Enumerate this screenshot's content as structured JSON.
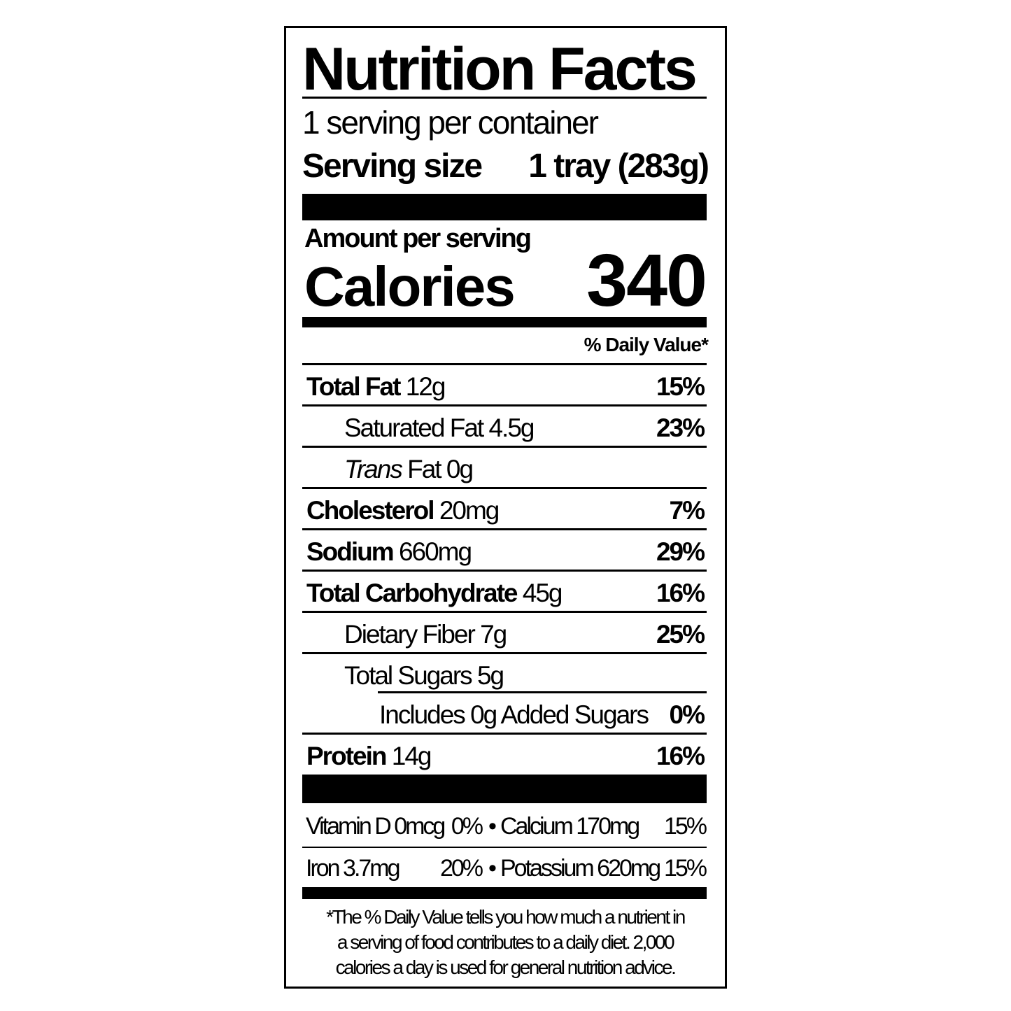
{
  "label": {
    "title": "Nutrition Facts",
    "servings_per_container": "1 serving per container",
    "serving_size_label": "Serving size",
    "serving_size_value": "1 tray (283g)",
    "amount_per_serving": "Amount per serving",
    "calories_label": "Calories",
    "calories_value": "340",
    "daily_value_header": "% Daily Value*",
    "nutrients": [
      {
        "name": "Total Fat",
        "amount": "12g",
        "dv": "15%"
      },
      {
        "name": "Saturated Fat",
        "amount": "4.5g",
        "dv": "23%"
      },
      {
        "name": "Trans",
        "name_rest": "Fat",
        "amount": "0g",
        "dv": ""
      },
      {
        "name": "Cholesterol",
        "amount": "20mg",
        "dv": "7%"
      },
      {
        "name": "Sodium",
        "amount": "660mg",
        "dv": "29%"
      },
      {
        "name": "Total Carbohydrate",
        "amount": "45g",
        "dv": "16%"
      },
      {
        "name": "Dietary Fiber",
        "amount": "7g",
        "dv": "25%"
      },
      {
        "name": "Total Sugars",
        "amount": "5g",
        "dv": ""
      },
      {
        "name": "Includes 0g Added Sugars",
        "amount": "",
        "dv": "0%"
      },
      {
        "name": "Protein",
        "amount": "14g",
        "dv": "16%"
      }
    ],
    "vitamins": [
      {
        "left": "Vitamin D 0mcg",
        "left_dv": "0%",
        "right": "Calcium 170mg",
        "right_dv": "15%"
      },
      {
        "left": "Iron 3.7mg",
        "left_dv": "20%",
        "right": "Potassium 620mg",
        "right_dv": "15%"
      }
    ],
    "bullet": "•",
    "footnote": [
      "*The % Daily Value tells you how much a nutrient in",
      "a serving of food contributes to a daily diet. 2,000",
      "calories a day is used for general nutrition advice."
    ]
  }
}
